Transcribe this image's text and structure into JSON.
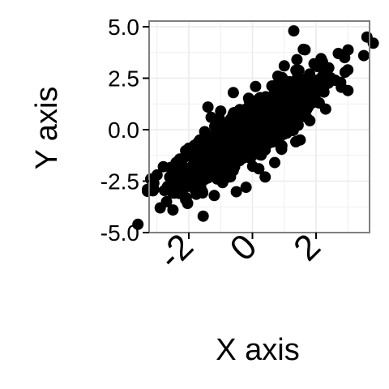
{
  "chart_data": {
    "type": "scatter",
    "title": "",
    "xlabel": "X axis",
    "ylabel": "Y axis",
    "xlim": [
      -3.8,
      3.9
    ],
    "ylim": [
      -5.0,
      5.0
    ],
    "x_ticks": [
      {
        "value": -2,
        "label": "-2"
      },
      {
        "value": 0,
        "label": "0"
      },
      {
        "value": 2,
        "label": "2"
      }
    ],
    "y_ticks": [
      {
        "value": 5.0,
        "label": "5.0"
      },
      {
        "value": 2.5,
        "label": "2.5"
      },
      {
        "value": 0.0,
        "label": "0.0"
      },
      {
        "value": -2.5,
        "label": "-2.5"
      },
      {
        "value": -5.0,
        "label": "-5.0"
      }
    ],
    "grid": true,
    "legend": "none",
    "colors": {
      "points": "#000000",
      "grid": "#ebebeb",
      "panel_border": "#7f7f7f"
    },
    "series": [
      {
        "points": [
          [
            -3.6,
            -4.6
          ],
          [
            -2.9,
            -3.8
          ],
          [
            -2.7,
            -3.5
          ],
          [
            -2.5,
            -3.9
          ],
          [
            -2.3,
            -3.1
          ],
          [
            -2.1,
            -3.4
          ],
          [
            -1.2,
            -3.2
          ],
          [
            -2.2,
            -2.1
          ],
          [
            -2.4,
            -1.6
          ],
          [
            -2.0,
            -0.9
          ],
          [
            -1.8,
            -1.4
          ],
          [
            -1.5,
            -0.1
          ],
          [
            -1.7,
            -0.6
          ],
          [
            -1.9,
            -1.9
          ],
          [
            -2.6,
            -2.3
          ],
          [
            -3.1,
            -2.6
          ],
          [
            -3.3,
            -2.9
          ],
          [
            -3.0,
            -2.2
          ],
          [
            -2.8,
            -1.8
          ],
          [
            -1.3,
            0.6
          ],
          [
            -1.4,
            1.1
          ],
          [
            -1.0,
            0.9
          ],
          [
            -0.6,
            1.8
          ],
          [
            -0.8,
            0.2
          ],
          [
            -0.5,
            -0.8
          ],
          [
            -0.3,
            0.5
          ],
          [
            -0.1,
            1.4
          ],
          [
            0.1,
            2.1
          ],
          [
            0.3,
            0.8
          ],
          [
            0.5,
            -0.5
          ],
          [
            0.2,
            -1.9
          ],
          [
            -0.2,
            -2.8
          ],
          [
            0.4,
            -2.3
          ],
          [
            0.6,
            1.6
          ],
          [
            0.8,
            2.6
          ],
          [
            1.0,
            3.1
          ],
          [
            1.2,
            2.0
          ],
          [
            1.4,
            3.4
          ],
          [
            1.3,
            4.8
          ],
          [
            1.6,
            3.9
          ],
          [
            1.8,
            2.7
          ],
          [
            2.0,
            2.2
          ],
          [
            2.2,
            3.3
          ],
          [
            2.4,
            3.0
          ],
          [
            2.6,
            2.4
          ],
          [
            2.1,
            1.3
          ],
          [
            1.7,
            0.6
          ],
          [
            1.5,
            -0.5
          ],
          [
            1.1,
            0.4
          ],
          [
            0.9,
            -0.9
          ],
          [
            0.7,
            -1.6
          ],
          [
            2.3,
            1.0
          ],
          [
            2.7,
            3.7
          ],
          [
            2.9,
            3.5
          ],
          [
            3.0,
            1.9
          ],
          [
            3.6,
            4.5
          ],
          [
            3.8,
            4.2
          ],
          [
            3.5,
            3.6
          ],
          [
            -3.1,
            -2.9
          ],
          [
            -3.2,
            -2.4
          ]
        ],
        "cloud": {
          "count": 1200,
          "x_mean": 0.0,
          "x_sd": 1.0,
          "slope": 1.0,
          "noise_sd": 0.65
        }
      }
    ]
  }
}
